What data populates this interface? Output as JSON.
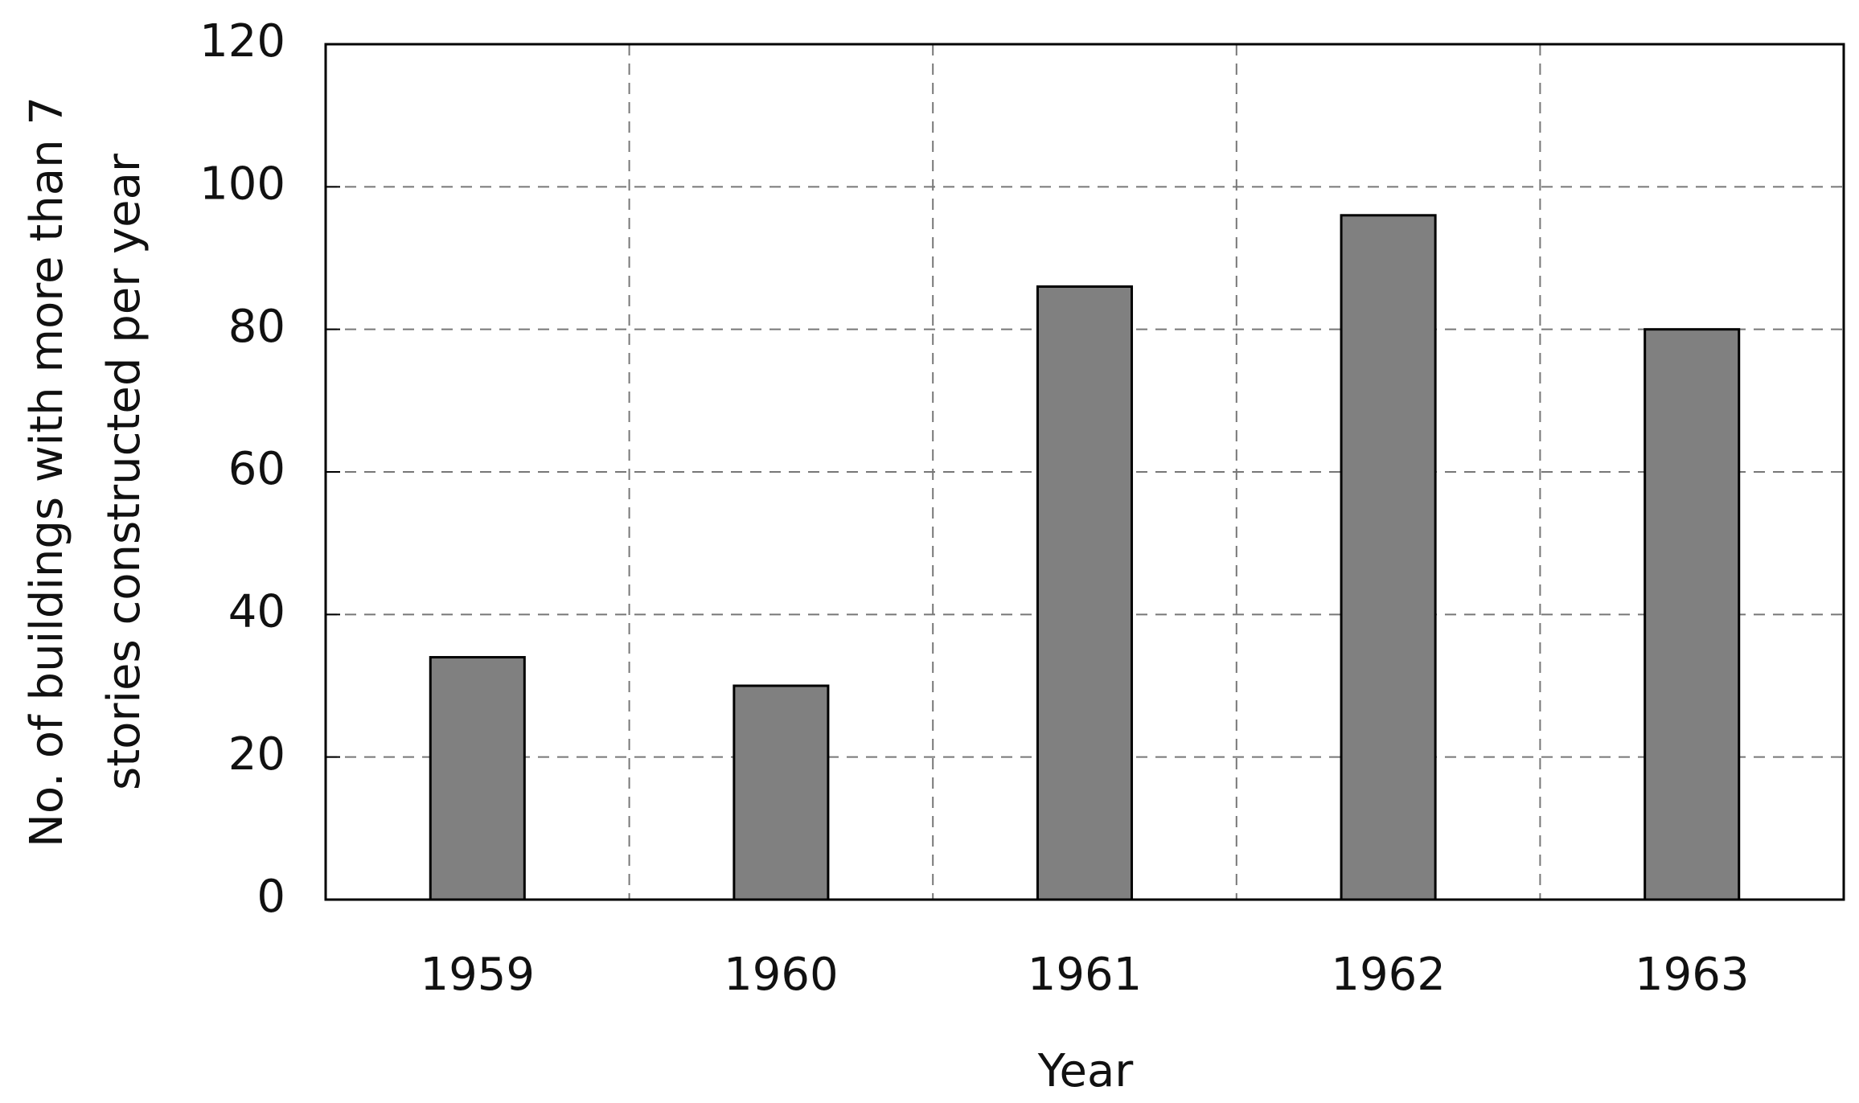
{
  "chart_data": {
    "type": "bar",
    "xlabel": "Year",
    "ylabel": [
      "No. of buildings with more than 7",
      "stories constructed per year"
    ],
    "categories": [
      "1959",
      "1960",
      "1961",
      "1962",
      "1963"
    ],
    "values": [
      34,
      30,
      86,
      96,
      80
    ],
    "color": "#808080",
    "ylim": [
      0,
      120
    ],
    "yticks": [
      0,
      20,
      40,
      60,
      80,
      100,
      120
    ],
    "grid": true
  }
}
